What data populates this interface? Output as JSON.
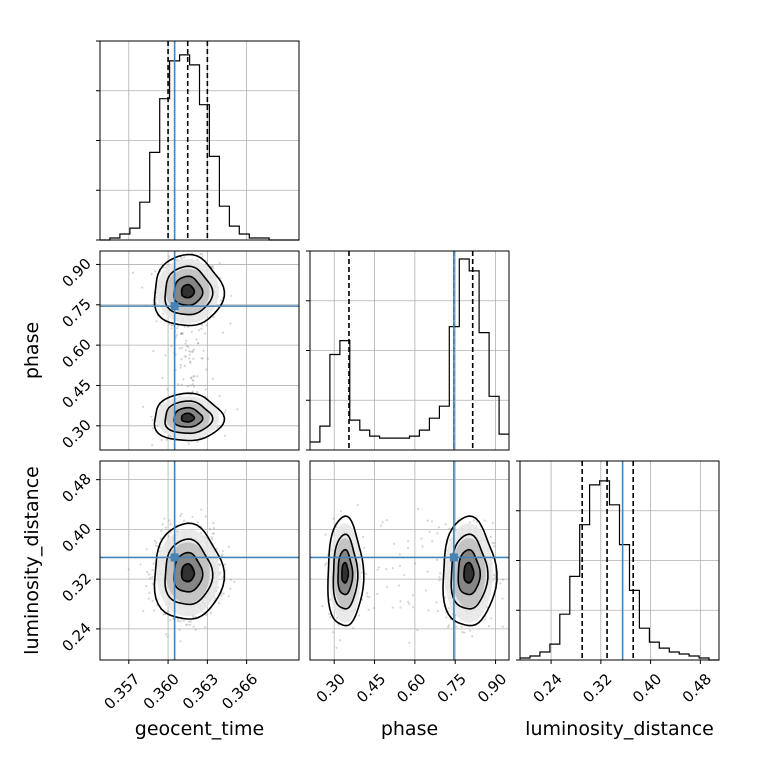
{
  "chart_data": {
    "type": "corner",
    "parameters": [
      "geocent_time",
      "phase",
      "luminosity_distance"
    ],
    "truth_color": "#4682b4",
    "axes": {
      "geocent_time": {
        "label": "geocent_time",
        "lim": [
          0.3548,
          0.37
        ],
        "ticks": [
          0.357,
          0.36,
          0.363,
          0.366
        ],
        "tick_labels": [
          "0.357",
          "0.360",
          "0.363",
          "0.366"
        ]
      },
      "phase": {
        "label": "phase",
        "lim": [
          0.21,
          0.95
        ],
        "ticks": [
          0.3,
          0.45,
          0.6,
          0.75,
          0.9
        ],
        "tick_labels": [
          "0.30",
          "0.45",
          "0.60",
          "0.75",
          "0.90"
        ]
      },
      "luminosity_distance": {
        "label": "luminosity_distance",
        "lim": [
          0.19,
          0.51
        ],
        "ticks": [
          0.24,
          0.32,
          0.4,
          0.48
        ],
        "tick_labels": [
          "0.24",
          "0.32",
          "0.40",
          "0.48"
        ]
      }
    },
    "truths": {
      "geocent_time": 0.3605,
      "phase": 0.745,
      "luminosity_distance": 0.355
    },
    "quantiles": {
      "geocent_time": [
        0.36,
        0.3615,
        0.363
      ],
      "phase": [
        0.355,
        0.745,
        0.815
      ],
      "luminosity_distance": [
        0.29,
        0.33,
        0.372
      ]
    },
    "histograms": {
      "geocent_time": {
        "edges": [
          0.3548,
          0.35556,
          0.35632,
          0.35708,
          0.35784,
          0.3586,
          0.35936,
          0.36012,
          0.36088,
          0.36164,
          0.3624,
          0.36316,
          0.36392,
          0.36468,
          0.36544,
          0.3662,
          0.36696,
          0.36772,
          0.36848,
          0.36924,
          0.37
        ],
        "values": [
          0,
          0.01,
          0.03,
          0.06,
          0.19,
          0.44,
          0.71,
          0.9,
          0.93,
          0.88,
          0.68,
          0.42,
          0.17,
          0.07,
          0.03,
          0.01,
          0.01,
          0,
          0,
          0
        ]
      },
      "phase": {
        "edges": [
          0.21,
          0.247,
          0.284,
          0.321,
          0.358,
          0.395,
          0.432,
          0.469,
          0.506,
          0.543,
          0.58,
          0.617,
          0.654,
          0.691,
          0.728,
          0.765,
          0.802,
          0.839,
          0.876,
          0.913,
          0.95
        ],
        "values": [
          0.04,
          0.12,
          0.48,
          0.55,
          0.15,
          0.1,
          0.07,
          0.06,
          0.06,
          0.06,
          0.07,
          0.1,
          0.16,
          0.22,
          0.62,
          0.96,
          0.9,
          0.59,
          0.27,
          0.08
        ]
      },
      "luminosity_distance": {
        "edges": [
          0.19,
          0.206,
          0.222,
          0.238,
          0.254,
          0.27,
          0.286,
          0.302,
          0.318,
          0.334,
          0.35,
          0.366,
          0.382,
          0.398,
          0.414,
          0.43,
          0.446,
          0.462,
          0.478,
          0.494,
          0.51
        ],
        "values": [
          0.01,
          0.02,
          0.04,
          0.08,
          0.23,
          0.42,
          0.68,
          0.88,
          0.9,
          0.78,
          0.58,
          0.35,
          0.16,
          0.09,
          0.06,
          0.04,
          0.03,
          0.02,
          0.01,
          0
        ]
      }
    }
  }
}
